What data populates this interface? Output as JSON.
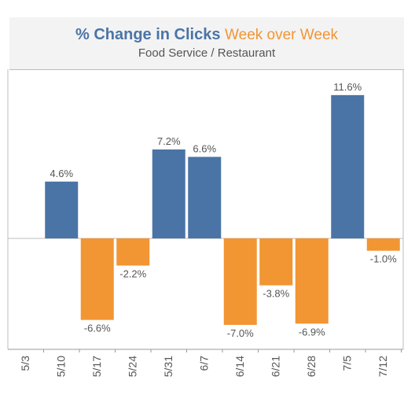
{
  "chart_data": {
    "type": "bar",
    "title": "% Change in Clicks",
    "title_accent": "Week over Week",
    "subtitle": "Food Service / Restaurant",
    "categories": [
      "5/3",
      "5/10",
      "5/17",
      "5/24",
      "5/31",
      "6/7",
      "6/14",
      "6/21",
      "6/28",
      "7/5",
      "7/12"
    ],
    "values": [
      null,
      4.6,
      -6.6,
      -2.2,
      7.2,
      6.6,
      -7.0,
      -3.8,
      -6.9,
      11.6,
      -1.0
    ],
    "data_labels": [
      "",
      "4.6%",
      "-6.6%",
      "-2.2%",
      "7.2%",
      "6.6%",
      "-7.0%",
      "-3.8%",
      "-6.9%",
      "11.6%",
      "-1.0%"
    ],
    "ylim": [
      -9,
      12
    ],
    "grid": false,
    "xlabel": "",
    "ylabel": "",
    "colors": {
      "positive": "#4a74a6",
      "negative": "#f29533",
      "title": "#4a74a6",
      "accent": "#f29533"
    }
  }
}
